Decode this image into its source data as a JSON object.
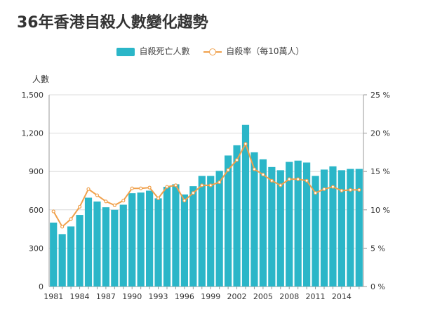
{
  "chart_data": {
    "type": "bar+line",
    "title": "36年香港自殺人數變化趨勢",
    "ylabel_left": "人數",
    "x": [
      1981,
      1982,
      1983,
      1984,
      1985,
      1986,
      1987,
      1988,
      1989,
      1990,
      1991,
      1992,
      1993,
      1994,
      1995,
      1996,
      1997,
      1998,
      1999,
      2000,
      2001,
      2002,
      2003,
      2004,
      2005,
      2006,
      2007,
      2008,
      2009,
      2010,
      2011,
      2012,
      2013,
      2014,
      2015,
      2016
    ],
    "x_tick_labels": [
      "1981",
      "1984",
      "1987",
      "1990",
      "1993",
      "1996",
      "1999",
      "2002",
      "2005",
      "2008",
      "2011",
      "2014"
    ],
    "left_axis": {
      "min": 0,
      "max": 1500,
      "ticks": [
        "0",
        "300",
        "600",
        "900",
        "1,200",
        "1,500"
      ],
      "tick_values": [
        0,
        300,
        600,
        900,
        1200,
        1500
      ]
    },
    "right_axis": {
      "min": 0,
      "max": 25,
      "ticks": [
        "0 %",
        "5 %",
        "10 %",
        "15 %",
        "20 %",
        "25 %"
      ],
      "tick_values": [
        0,
        5,
        10,
        15,
        20,
        25
      ]
    },
    "series": [
      {
        "name": "自殺死亡人數",
        "type": "bar",
        "color": "#2bb6c8",
        "values": [
          500,
          410,
          470,
          560,
          695,
          665,
          620,
          600,
          640,
          730,
          735,
          750,
          690,
          780,
          800,
          720,
          785,
          865,
          865,
          905,
          1025,
          1105,
          1265,
          1050,
          995,
          935,
          910,
          975,
          985,
          970,
          865,
          915,
          940,
          910,
          920,
          920
        ]
      },
      {
        "name": "自殺率（每10萬人）",
        "type": "line",
        "color": "#f0a04b",
        "values": [
          9.8,
          7.8,
          8.8,
          10.4,
          12.7,
          11.9,
          11.1,
          10.6,
          11.2,
          12.8,
          12.8,
          12.9,
          11.5,
          13.0,
          13.2,
          11.2,
          12.2,
          13.2,
          13.2,
          13.6,
          15.2,
          16.5,
          18.6,
          15.3,
          14.6,
          13.8,
          13.2,
          14.0,
          14.0,
          13.8,
          12.2,
          12.7,
          13.0,
          12.5,
          12.6,
          12.6
        ]
      }
    ],
    "legend_position": "top-center"
  }
}
